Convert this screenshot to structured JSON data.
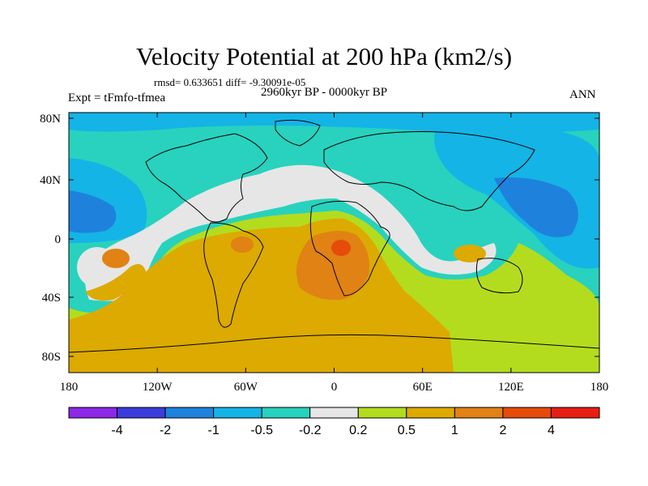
{
  "header": {
    "title": "Velocity Potential at 200 hPa (km2/s)",
    "stats": "rmsd= 0.633651 diff= -9.30091e-05",
    "experiment": "Expt = tFmfo-tfmea",
    "period": "2960kyr BP - 0000kyr BP",
    "season": "ANN"
  },
  "map": {
    "lat_ticks": [
      "80N",
      "40N",
      "0",
      "40S",
      "80S"
    ],
    "lon_ticks": [
      "180",
      "120W",
      "60W",
      "0",
      "60E",
      "120E",
      "180"
    ]
  },
  "colorbar": {
    "colors": [
      "#8c28e6",
      "#3c3cdc",
      "#1e82dc",
      "#14b4e6",
      "#28d2be",
      "#e6e6e6",
      "#b4dc1e",
      "#dcaa00",
      "#e08214",
      "#e64b0a",
      "#e61e14"
    ],
    "labels": [
      "-4",
      "-2",
      "-1",
      "-0.5",
      "-0.2",
      "0.2",
      "0.5",
      "1",
      "2",
      "4"
    ]
  }
}
